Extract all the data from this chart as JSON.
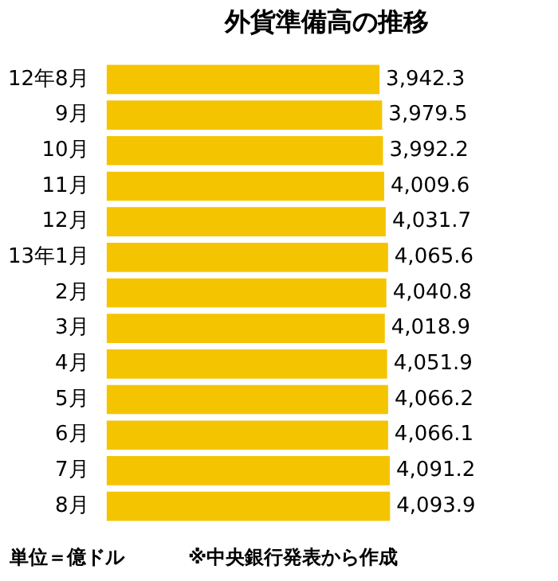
{
  "chart_data": {
    "type": "bar",
    "orientation": "horizontal",
    "title": "外貨準備高の推移",
    "categories": [
      "12年8月",
      "9月",
      "10月",
      "11月",
      "12月",
      "13年1月",
      "2月",
      "3月",
      "4月",
      "5月",
      "6月",
      "7月",
      "8月"
    ],
    "values": [
      3942.3,
      3979.5,
      3992.2,
      4009.6,
      4031.7,
      4065.6,
      4040.8,
      4018.9,
      4051.9,
      4066.2,
      4066.1,
      4091.2,
      4093.9
    ],
    "value_labels": [
      "3,942.3",
      "3,979.5",
      "3,992.2",
      "4,009.6",
      "4,031.7",
      "4,065.6",
      "4,040.8",
      "4,018.9",
      "4,051.9",
      "4,066.2",
      "4,066.1",
      "4,091.2",
      "4,093.9"
    ],
    "color": "#f5c400",
    "tick_labels": "y",
    "annotations": [
      "単位＝億ドル",
      "※中央銀行発表から作成"
    ]
  }
}
